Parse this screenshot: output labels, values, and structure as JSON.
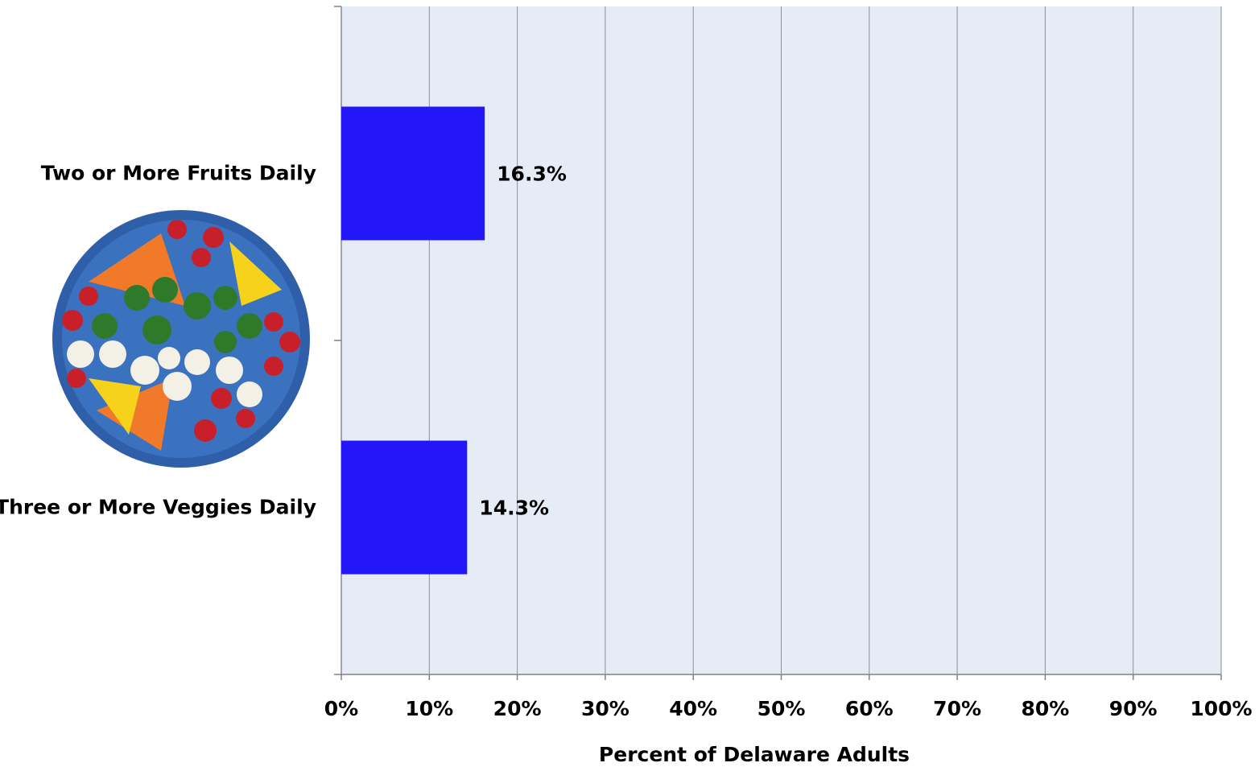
{
  "chart_data": {
    "type": "barh",
    "categories": [
      "Two or More Fruits Daily",
      "Three or More Veggies Daily"
    ],
    "values": [
      16.3,
      14.3
    ],
    "value_labels": [
      "16.3%",
      "14.3%"
    ],
    "color": "#2317f8",
    "xlabel": "Percent of Delaware Adults",
    "xlim": [
      0,
      100
    ],
    "xticks": [
      {
        "value": 0,
        "label": "0%"
      },
      {
        "value": 10,
        "label": "10%"
      },
      {
        "value": 20,
        "label": "20%"
      },
      {
        "value": 30,
        "label": "30%"
      },
      {
        "value": 40,
        "label": "40%"
      },
      {
        "value": 50,
        "label": "50%"
      },
      {
        "value": 60,
        "label": "60%"
      },
      {
        "value": 70,
        "label": "70%"
      },
      {
        "value": 80,
        "label": "80%"
      },
      {
        "value": 90,
        "label": "90%"
      },
      {
        "value": 100,
        "label": "100%"
      }
    ],
    "grid": true
  }
}
